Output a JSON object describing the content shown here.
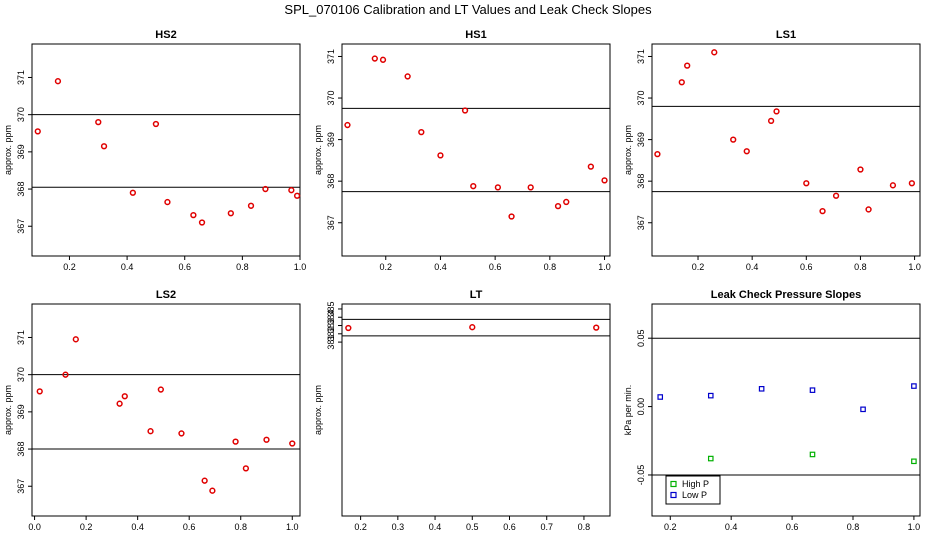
{
  "title": "SPL_070106  Calibration and LT Values and Leak Check Slopes",
  "chart_data": [
    {
      "type": "scatter",
      "title": "HS2",
      "ylabel": "approx. ppm",
      "xlim": [
        0.07,
        1.0
      ],
      "ylim": [
        366.2,
        371.9
      ],
      "xticks": [
        "0.2",
        "0.4",
        "0.6",
        "0.8",
        "1.0"
      ],
      "xticks_values": [
        0.2,
        0.4,
        0.6,
        0.8,
        1.0
      ],
      "yticks": [
        "367",
        "368",
        "369",
        "370",
        "371"
      ],
      "yticks_values": [
        367,
        368,
        369,
        370,
        371
      ],
      "hlines": [
        370.0,
        368.05
      ],
      "marker_color": "#e00000",
      "x": [
        0.09,
        0.16,
        0.3,
        0.32,
        0.42,
        0.5,
        0.54,
        0.63,
        0.66,
        0.76,
        0.83,
        0.88,
        0.97,
        0.99
      ],
      "y": [
        369.55,
        370.9,
        369.8,
        369.15,
        367.9,
        369.75,
        367.65,
        367.3,
        367.1,
        367.35,
        367.55,
        368.0,
        367.97,
        367.82
      ]
    },
    {
      "type": "scatter",
      "title": "HS1",
      "ylabel": "approx. ppm",
      "xlim": [
        0.04,
        1.02
      ],
      "ylim": [
        366.2,
        371.3
      ],
      "xticks": [
        "0.2",
        "0.4",
        "0.6",
        "0.8",
        "1.0"
      ],
      "xticks_values": [
        0.2,
        0.4,
        0.6,
        0.8,
        1.0
      ],
      "yticks": [
        "367",
        "368",
        "369",
        "370",
        "371"
      ],
      "yticks_values": [
        367,
        368,
        369,
        370,
        371
      ],
      "hlines": [
        369.75,
        367.75
      ],
      "marker_color": "#e00000",
      "x": [
        0.06,
        0.16,
        0.19,
        0.28,
        0.33,
        0.4,
        0.49,
        0.52,
        0.61,
        0.66,
        0.73,
        0.83,
        0.86,
        0.95,
        1.0
      ],
      "y": [
        369.35,
        370.95,
        370.92,
        370.52,
        369.18,
        368.62,
        369.7,
        367.88,
        367.85,
        367.15,
        367.85,
        367.4,
        367.5,
        368.35,
        368.02
      ]
    },
    {
      "type": "scatter",
      "title": "LS1",
      "ylabel": "approx. ppm",
      "xlim": [
        0.03,
        1.02
      ],
      "ylim": [
        366.2,
        371.3
      ],
      "xticks": [
        "0.2",
        "0.4",
        "0.6",
        "0.8",
        "1.0"
      ],
      "xticks_values": [
        0.2,
        0.4,
        0.6,
        0.8,
        1.0
      ],
      "yticks": [
        "367",
        "368",
        "369",
        "370",
        "371"
      ],
      "yticks_values": [
        367,
        368,
        369,
        370,
        371
      ],
      "hlines": [
        369.8,
        367.75
      ],
      "marker_color": "#e00000",
      "x": [
        0.05,
        0.14,
        0.16,
        0.26,
        0.33,
        0.38,
        0.47,
        0.49,
        0.6,
        0.66,
        0.71,
        0.8,
        0.83,
        0.92,
        0.99
      ],
      "y": [
        368.65,
        370.38,
        370.78,
        371.1,
        369.0,
        368.72,
        369.45,
        369.68,
        367.95,
        367.28,
        367.65,
        368.28,
        367.32,
        367.9,
        367.95
      ]
    },
    {
      "type": "scatter",
      "title": "LS2",
      "ylabel": "approx. ppm",
      "xlim": [
        -0.01,
        1.03
      ],
      "ylim": [
        366.2,
        371.9
      ],
      "xticks": [
        "0.0",
        "0.2",
        "0.4",
        "0.6",
        "0.8",
        "1.0"
      ],
      "xticks_values": [
        0.0,
        0.2,
        0.4,
        0.6,
        0.8,
        1.0
      ],
      "yticks": [
        "367",
        "368",
        "369",
        "370",
        "371"
      ],
      "yticks_values": [
        367,
        368,
        369,
        370,
        371
      ],
      "hlines": [
        370.0,
        368.0
      ],
      "marker_color": "#e00000",
      "x": [
        0.02,
        0.12,
        0.16,
        0.33,
        0.35,
        0.45,
        0.49,
        0.57,
        0.66,
        0.69,
        0.78,
        0.82,
        0.9,
        1.0
      ],
      "y": [
        369.55,
        370.0,
        370.95,
        369.22,
        369.42,
        368.48,
        369.6,
        368.42,
        367.15,
        366.88,
        368.2,
        367.48,
        368.25,
        368.15
      ]
    },
    {
      "type": "scatter",
      "title": "LT",
      "ylabel": "approx. ppm",
      "xlim": [
        0.15,
        0.87
      ],
      "ylim": [
        360.0,
        385.6
      ],
      "xticks": [
        "0.2",
        "0.3",
        "0.4",
        "0.5",
        "0.6",
        "0.7",
        "0.8"
      ],
      "xticks_values": [
        0.2,
        0.3,
        0.4,
        0.5,
        0.6,
        0.7,
        0.8
      ],
      "yticks": [
        "381",
        "382",
        "383",
        "384",
        "385"
      ],
      "yticks_values": [
        381,
        382,
        383,
        384,
        385
      ],
      "hlines": [
        383.75,
        381.75
      ],
      "marker_color": "#e00000",
      "x": [
        0.167,
        0.5,
        0.833
      ],
      "y": [
        382.7,
        382.8,
        382.75
      ]
    },
    {
      "type": "scatter",
      "title": "Leak Check Pressure Slopes",
      "ylabel": "kPa per min.",
      "xlim": [
        0.14,
        1.02
      ],
      "ylim": [
        -0.08,
        0.075
      ],
      "xticks": [
        "0.2",
        "0.4",
        "0.6",
        "0.8",
        "1.0"
      ],
      "xticks_values": [
        0.2,
        0.4,
        0.6,
        0.8,
        1.0
      ],
      "yticks": [
        "-0.05",
        "0.00",
        "0.05"
      ],
      "yticks_values": [
        -0.05,
        0.0,
        0.05
      ],
      "hlines": [
        0.05,
        -0.05
      ],
      "legend_position": "bottom-left",
      "series": [
        {
          "name": "High P",
          "color": "#00b000",
          "x": [
            0.333,
            0.667,
            1.0
          ],
          "y": [
            -0.038,
            -0.035,
            -0.04
          ]
        },
        {
          "name": "Low P",
          "color": "#0000cc",
          "x": [
            0.167,
            0.333,
            0.5,
            0.667,
            0.833,
            1.0
          ],
          "y": [
            0.007,
            0.008,
            0.013,
            0.012,
            -0.002,
            0.015
          ]
        }
      ]
    }
  ]
}
